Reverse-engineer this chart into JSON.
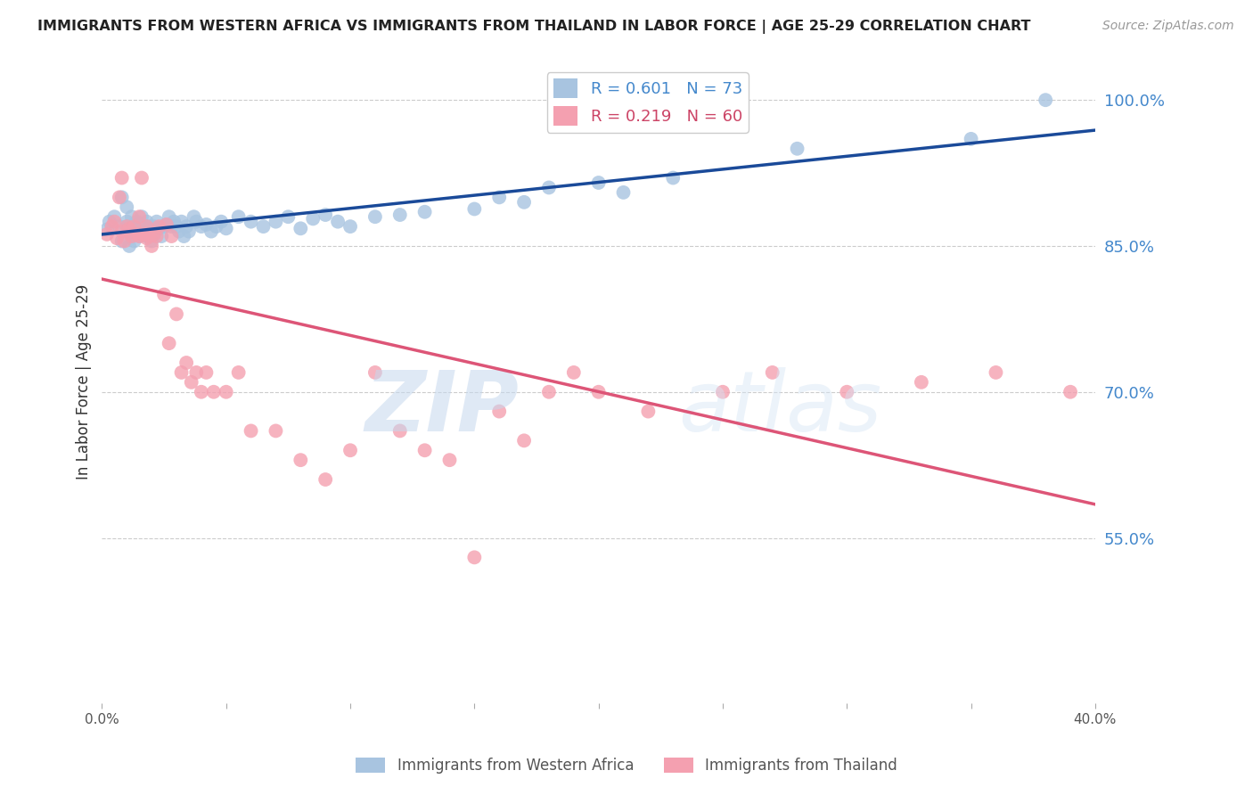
{
  "title": "IMMIGRANTS FROM WESTERN AFRICA VS IMMIGRANTS FROM THAILAND IN LABOR FORCE | AGE 25-29 CORRELATION CHART",
  "source": "Source: ZipAtlas.com",
  "ylabel": "In Labor Force | Age 25-29",
  "xlim": [
    0.0,
    0.4
  ],
  "ylim": [
    0.38,
    1.04
  ],
  "xticks": [
    0.0,
    0.05,
    0.1,
    0.15,
    0.2,
    0.25,
    0.3,
    0.35,
    0.4
  ],
  "xticklabels": [
    "0.0%",
    "",
    "",
    "",
    "",
    "",
    "",
    "",
    "40.0%"
  ],
  "yticks_right": [
    0.55,
    0.7,
    0.85,
    1.0
  ],
  "ytick_labels_right": [
    "55.0%",
    "70.0%",
    "85.0%",
    "100.0%"
  ],
  "hlines": [
    0.55,
    0.7,
    0.85,
    1.0
  ],
  "blue_color": "#a8c4e0",
  "pink_color": "#f4a0b0",
  "blue_line_color": "#1a4a99",
  "pink_line_color": "#dd5577",
  "blue_R": 0.601,
  "blue_N": 73,
  "pink_R": 0.219,
  "pink_N": 60,
  "legend_blue_label": "Immigrants from Western Africa",
  "legend_pink_label": "Immigrants from Thailand",
  "watermark_zip": "ZIP",
  "watermark_atlas": "atlas",
  "blue_scatter_x": [
    0.002,
    0.003,
    0.005,
    0.007,
    0.008,
    0.008,
    0.01,
    0.01,
    0.01,
    0.011,
    0.011,
    0.012,
    0.012,
    0.013,
    0.013,
    0.014,
    0.014,
    0.015,
    0.015,
    0.016,
    0.016,
    0.017,
    0.018,
    0.018,
    0.019,
    0.02,
    0.02,
    0.021,
    0.022,
    0.023,
    0.024,
    0.025,
    0.026,
    0.027,
    0.028,
    0.029,
    0.03,
    0.031,
    0.032,
    0.033,
    0.034,
    0.035,
    0.037,
    0.038,
    0.04,
    0.042,
    0.044,
    0.046,
    0.048,
    0.05,
    0.055,
    0.06,
    0.065,
    0.07,
    0.075,
    0.08,
    0.085,
    0.09,
    0.095,
    0.1,
    0.11,
    0.12,
    0.13,
    0.15,
    0.16,
    0.17,
    0.18,
    0.2,
    0.21,
    0.23,
    0.28,
    0.35,
    0.38
  ],
  "blue_scatter_y": [
    0.867,
    0.875,
    0.88,
    0.87,
    0.855,
    0.9,
    0.87,
    0.875,
    0.89,
    0.85,
    0.865,
    0.86,
    0.88,
    0.855,
    0.87,
    0.865,
    0.875,
    0.86,
    0.872,
    0.865,
    0.88,
    0.868,
    0.86,
    0.875,
    0.87,
    0.855,
    0.868,
    0.87,
    0.875,
    0.868,
    0.86,
    0.87,
    0.872,
    0.88,
    0.87,
    0.875,
    0.87,
    0.865,
    0.875,
    0.86,
    0.87,
    0.865,
    0.88,
    0.875,
    0.87,
    0.872,
    0.865,
    0.87,
    0.875,
    0.868,
    0.88,
    0.875,
    0.87,
    0.875,
    0.88,
    0.868,
    0.878,
    0.882,
    0.875,
    0.87,
    0.88,
    0.882,
    0.885,
    0.888,
    0.9,
    0.895,
    0.91,
    0.915,
    0.905,
    0.92,
    0.95,
    0.96,
    1.0
  ],
  "pink_scatter_x": [
    0.002,
    0.004,
    0.005,
    0.006,
    0.007,
    0.008,
    0.008,
    0.009,
    0.01,
    0.011,
    0.012,
    0.013,
    0.014,
    0.015,
    0.015,
    0.016,
    0.017,
    0.018,
    0.018,
    0.019,
    0.02,
    0.021,
    0.022,
    0.023,
    0.025,
    0.026,
    0.027,
    0.028,
    0.03,
    0.032,
    0.034,
    0.036,
    0.038,
    0.04,
    0.042,
    0.045,
    0.05,
    0.055,
    0.06,
    0.07,
    0.08,
    0.09,
    0.1,
    0.11,
    0.12,
    0.13,
    0.14,
    0.15,
    0.16,
    0.17,
    0.18,
    0.19,
    0.2,
    0.22,
    0.25,
    0.27,
    0.3,
    0.33,
    0.36,
    0.39
  ],
  "pink_scatter_y": [
    0.862,
    0.87,
    0.875,
    0.858,
    0.9,
    0.865,
    0.92,
    0.855,
    0.87,
    0.868,
    0.86,
    0.87,
    0.862,
    0.86,
    0.88,
    0.92,
    0.862,
    0.858,
    0.87,
    0.86,
    0.85,
    0.862,
    0.86,
    0.87,
    0.8,
    0.872,
    0.75,
    0.86,
    0.78,
    0.72,
    0.73,
    0.71,
    0.72,
    0.7,
    0.72,
    0.7,
    0.7,
    0.72,
    0.66,
    0.66,
    0.63,
    0.61,
    0.64,
    0.72,
    0.66,
    0.64,
    0.63,
    0.53,
    0.68,
    0.65,
    0.7,
    0.72,
    0.7,
    0.68,
    0.7,
    0.72,
    0.7,
    0.71,
    0.72,
    0.7
  ]
}
